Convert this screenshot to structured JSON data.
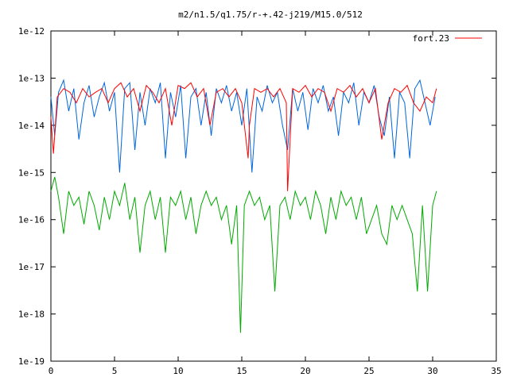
{
  "chart_data": {
    "type": "line",
    "title": "m2/n1.5/q1.75/r-+.42-j219/M15.0/512",
    "xlabel": "",
    "ylabel": "",
    "x_ticks": [
      "0",
      "5",
      "10",
      "15",
      "20",
      "25",
      "30",
      "35"
    ],
    "y_ticks": [
      "1e-12",
      "1e-13",
      "1e-14",
      "1e-15",
      "1e-16",
      "1e-17",
      "1e-18",
      "1e-19"
    ],
    "xlim": [
      0,
      35
    ],
    "ylim": [
      1e-19,
      1e-12
    ],
    "y_scale": "log",
    "grid": false,
    "legend_position": "top-right",
    "legend_entries": [
      "fort.23"
    ],
    "series": [
      {
        "name": "fort.23",
        "color": "#ff0000",
        "x": [
          0.0,
          0.2,
          0.5,
          1.0,
          1.5,
          2.0,
          2.5,
          3.0,
          3.5,
          4.0,
          4.5,
          5.0,
          5.5,
          6.0,
          6.5,
          7.0,
          7.5,
          8.0,
          8.5,
          9.0,
          9.5,
          10.0,
          10.5,
          11.0,
          11.5,
          12.0,
          12.5,
          13.0,
          13.5,
          14.0,
          14.5,
          15.0,
          15.5,
          15.6,
          16.0,
          16.5,
          17.0,
          17.5,
          18.0,
          18.5,
          18.6,
          19.0,
          19.5,
          20.0,
          20.5,
          21.0,
          21.5,
          22.0,
          22.5,
          23.0,
          23.5,
          24.0,
          24.5,
          25.0,
          25.5,
          26.0,
          26.5,
          27.0,
          27.5,
          28.0,
          28.5,
          29.0,
          29.5,
          30.0,
          30.3
        ],
        "y": [
          1.5e-14,
          2.5e-15,
          4e-14,
          6e-14,
          5e-14,
          3e-14,
          6e-14,
          4e-14,
          5e-14,
          6e-14,
          3e-14,
          6e-14,
          8e-14,
          4e-14,
          6e-14,
          2e-14,
          7e-14,
          5e-14,
          3e-14,
          6e-14,
          1e-14,
          7e-14,
          6e-14,
          8e-14,
          4e-14,
          6e-14,
          1e-14,
          5e-14,
          6e-14,
          4e-14,
          6e-14,
          3e-14,
          2e-15,
          1e-14,
          6e-14,
          5e-14,
          6e-14,
          4e-14,
          6e-14,
          3e-14,
          4e-16,
          6e-14,
          5e-14,
          7e-14,
          4e-14,
          6e-14,
          5e-14,
          2e-14,
          6e-14,
          5e-14,
          7e-14,
          4e-14,
          6e-14,
          3e-14,
          6e-14,
          5e-15,
          3e-14,
          6e-14,
          5e-14,
          7e-14,
          3e-14,
          2e-14,
          4e-14,
          3e-14,
          6e-14
        ]
      },
      {
        "name": "",
        "color": "#0066dd",
        "x": [
          0.0,
          0.3,
          0.6,
          1.0,
          1.4,
          1.8,
          2.2,
          2.6,
          3.0,
          3.4,
          3.8,
          4.2,
          4.6,
          5.0,
          5.4,
          5.8,
          6.2,
          6.6,
          7.0,
          7.4,
          7.8,
          8.2,
          8.6,
          9.0,
          9.4,
          9.8,
          10.2,
          10.6,
          11.0,
          11.4,
          11.8,
          12.2,
          12.6,
          13.0,
          13.4,
          13.8,
          14.2,
          14.6,
          15.0,
          15.4,
          15.8,
          16.2,
          16.6,
          17.0,
          17.4,
          17.8,
          18.2,
          18.6,
          19.0,
          19.4,
          19.8,
          20.2,
          20.6,
          21.0,
          21.4,
          21.8,
          22.2,
          22.6,
          23.0,
          23.4,
          23.8,
          24.2,
          24.6,
          25.0,
          25.4,
          25.8,
          26.2,
          26.6,
          27.0,
          27.4,
          27.8,
          28.2,
          28.6,
          29.0,
          29.4,
          29.8,
          30.2
        ],
        "y": [
          4e-14,
          6e-15,
          5e-14,
          9e-14,
          2e-14,
          6e-14,
          5e-15,
          3e-14,
          7e-14,
          1.5e-14,
          4e-14,
          8e-14,
          2e-14,
          5e-14,
          1e-15,
          6e-14,
          8e-14,
          3e-15,
          5e-14,
          1e-14,
          6e-14,
          3e-14,
          8e-14,
          2e-15,
          5e-14,
          1.5e-14,
          7e-14,
          2e-15,
          4e-14,
          6e-14,
          1e-14,
          5e-14,
          6e-15,
          6e-14,
          3e-14,
          7e-14,
          2e-14,
          5e-14,
          1e-14,
          6e-14,
          1e-15,
          4e-14,
          2e-14,
          7e-14,
          3e-14,
          5e-14,
          1e-14,
          3e-15,
          6e-14,
          2e-14,
          5e-14,
          8e-15,
          6e-14,
          3e-14,
          7e-14,
          2e-14,
          4e-14,
          6e-15,
          5e-14,
          3e-14,
          8e-14,
          1e-14,
          5e-14,
          3e-14,
          7e-14,
          1.5e-14,
          6e-15,
          4e-14,
          2e-15,
          5e-14,
          3e-14,
          2e-15,
          6e-14,
          9e-14,
          3e-14,
          1e-14,
          4e-14
        ]
      },
      {
        "name": "",
        "color": "#00aa00",
        "x": [
          0.0,
          0.3,
          0.6,
          1.0,
          1.4,
          1.8,
          2.2,
          2.6,
          3.0,
          3.4,
          3.8,
          4.2,
          4.6,
          5.0,
          5.4,
          5.8,
          6.2,
          6.6,
          7.0,
          7.4,
          7.8,
          8.2,
          8.6,
          9.0,
          9.4,
          9.8,
          10.2,
          10.6,
          11.0,
          11.4,
          11.8,
          12.2,
          12.6,
          13.0,
          13.4,
          13.8,
          14.2,
          14.6,
          14.9,
          15.2,
          15.6,
          16.0,
          16.4,
          16.8,
          17.2,
          17.6,
          18.0,
          18.4,
          18.8,
          19.2,
          19.6,
          20.0,
          20.4,
          20.8,
          21.2,
          21.6,
          22.0,
          22.4,
          22.8,
          23.2,
          23.6,
          24.0,
          24.4,
          24.8,
          25.2,
          25.6,
          26.0,
          26.4,
          26.8,
          27.2,
          27.6,
          28.0,
          28.4,
          28.8,
          29.2,
          29.6,
          30.0,
          30.3
        ],
        "y": [
          4e-16,
          8e-16,
          3e-16,
          5e-17,
          4e-16,
          2e-16,
          3e-16,
          8e-17,
          4e-16,
          2e-16,
          6e-17,
          3e-16,
          1e-16,
          4e-16,
          2e-16,
          6e-16,
          1e-16,
          3e-16,
          2e-17,
          2e-16,
          4e-16,
          1e-16,
          3e-16,
          2e-17,
          3e-16,
          2e-16,
          4e-16,
          1e-16,
          3e-16,
          5e-17,
          2e-16,
          4e-16,
          2e-16,
          3e-16,
          1e-16,
          2e-16,
          3e-17,
          2e-16,
          4e-19,
          2e-16,
          4e-16,
          2e-16,
          3e-16,
          1e-16,
          2e-16,
          3e-18,
          2e-16,
          3e-16,
          1e-16,
          4e-16,
          2e-16,
          3e-16,
          1e-16,
          4e-16,
          2e-16,
          5e-17,
          3e-16,
          1e-16,
          4e-16,
          2e-16,
          3e-16,
          1e-16,
          3e-16,
          5e-17,
          1e-16,
          2e-16,
          5e-17,
          3e-17,
          2e-16,
          1e-16,
          2e-16,
          1e-16,
          5e-17,
          3e-18,
          2e-16,
          3e-18,
          2e-16,
          4e-16
        ]
      }
    ]
  }
}
